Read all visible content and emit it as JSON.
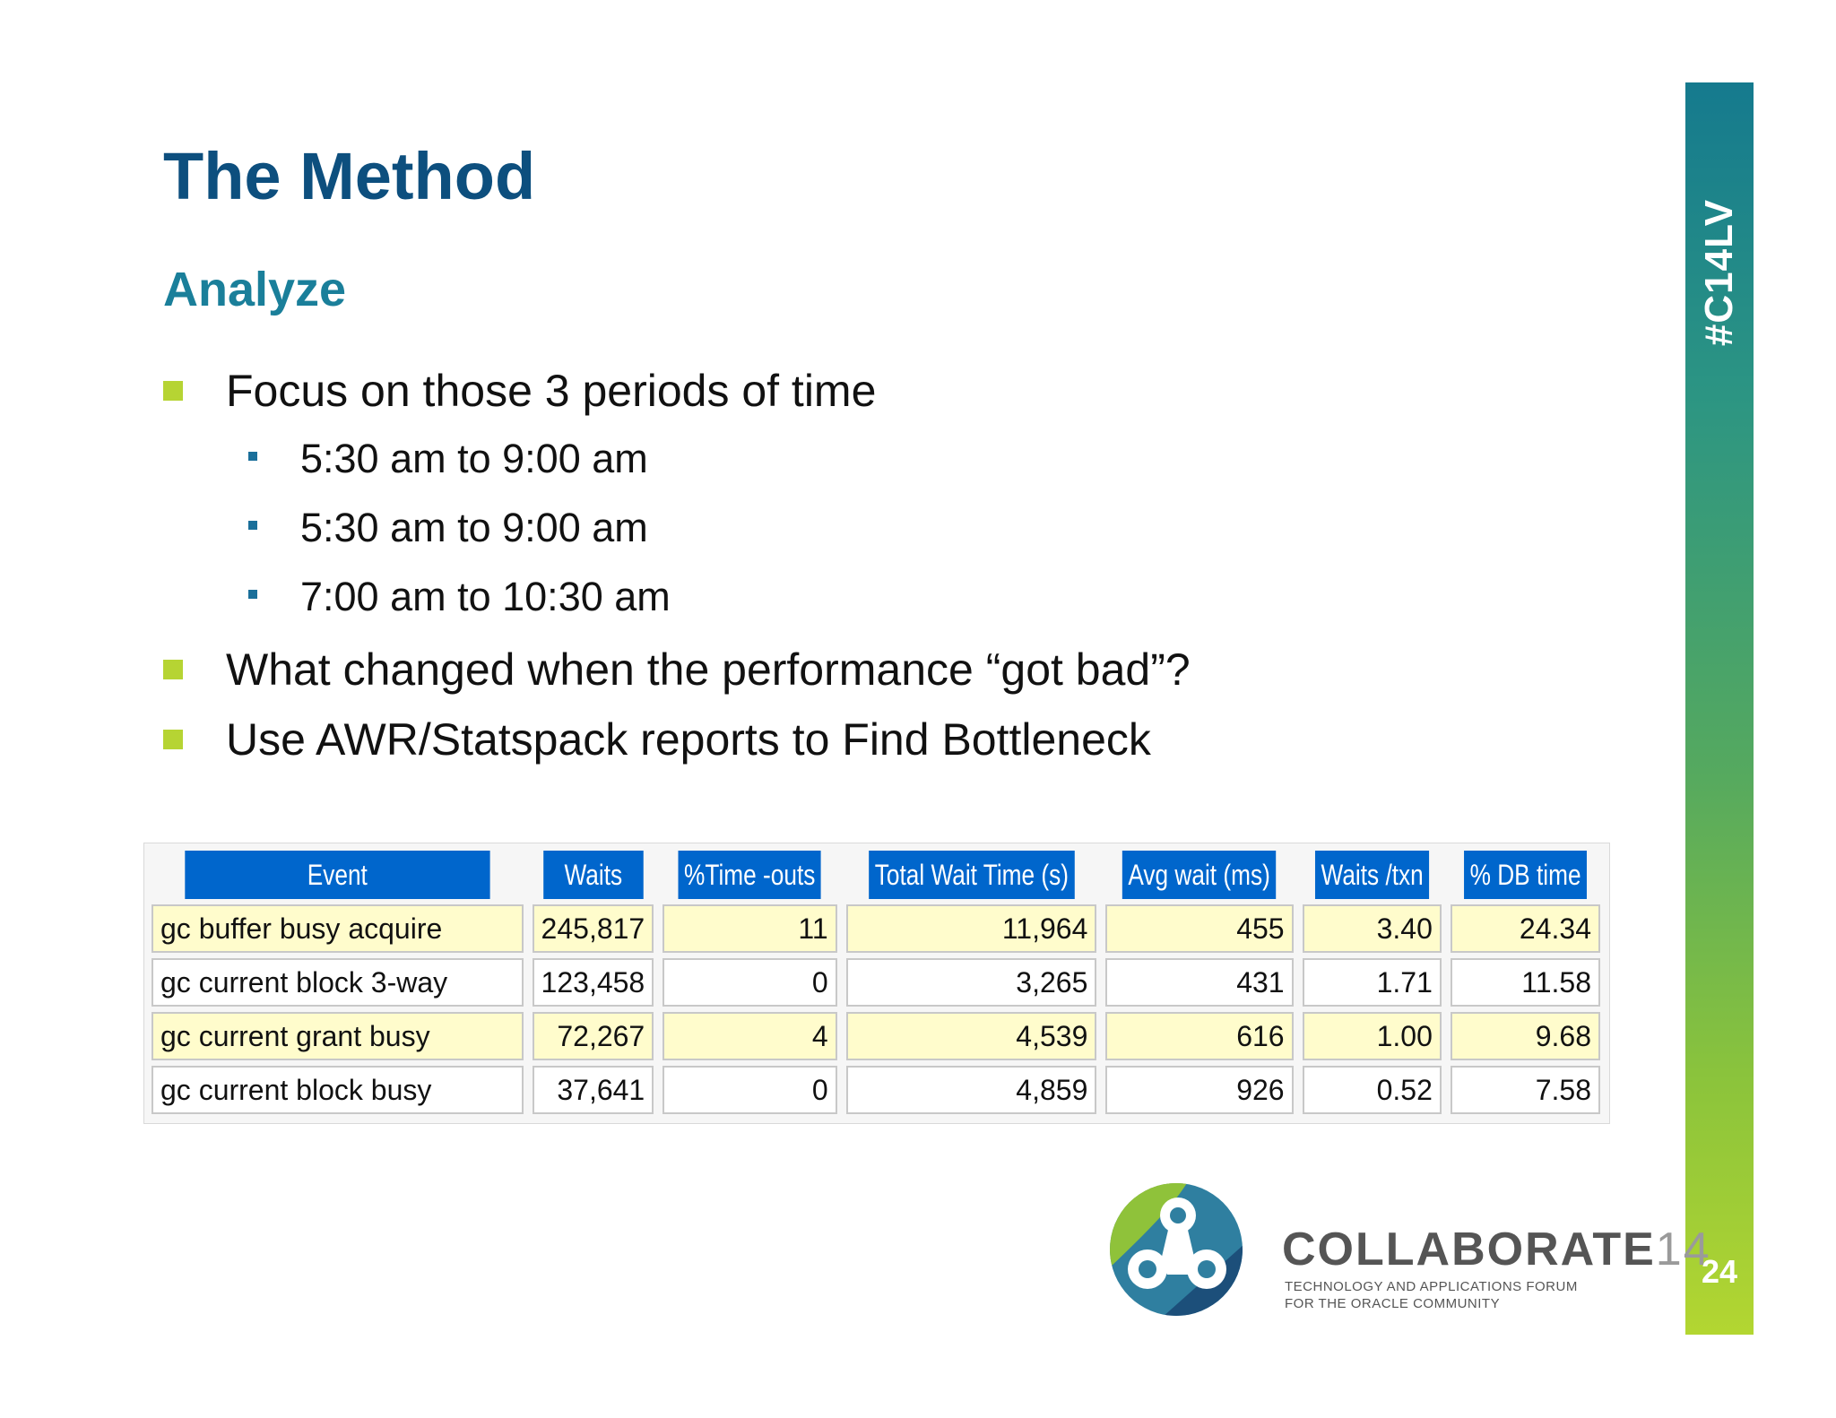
{
  "slide": {
    "title": "The Method",
    "subtitle": "Analyze",
    "bullets": {
      "b0": "Focus on those 3 periods of time",
      "s0": "5:30 am to 9:00 am",
      "s1": "5:30 am to 9:00 am",
      "s2": "7:00 am to 10:30 am",
      "b1": "What changed when the performance “got bad”?",
      "b2": "Use AWR/Statspack reports to Find Bottleneck"
    }
  },
  "table": {
    "headers": [
      "Event",
      "Waits",
      "%Time -outs",
      "Total Wait Time (s)",
      "Avg wait (ms)",
      "Waits /txn",
      "% DB time"
    ],
    "rows": [
      [
        "gc buffer busy acquire",
        "245,817",
        "11",
        "11,964",
        "455",
        "3.40",
        "24.34"
      ],
      [
        "gc current block 3-way",
        "123,458",
        "0",
        "3,265",
        "431",
        "1.71",
        "11.58"
      ],
      [
        "gc current grant busy",
        "72,267",
        "4",
        "4,539",
        "616",
        "1.00",
        "9.68"
      ],
      [
        "gc current block busy",
        "37,641",
        "0",
        "4,859",
        "926",
        "0.52",
        "7.58"
      ]
    ]
  },
  "sidebar": {
    "hashtag": "#C14LV",
    "page_number": "24"
  },
  "logo": {
    "word": "COLLABORATE",
    "number": "14",
    "tagline_1": "TECHNOLOGY AND APPLICATIONS FORUM",
    "tagline_2": "FOR THE ORACLE COMMUNITY"
  },
  "colors": {
    "title": "#0d4f7e",
    "subtitle": "#1a7f9a",
    "bullet_square": "#b6d433",
    "header_blue": "#0066cc",
    "row_highlight": "#fffccc"
  }
}
